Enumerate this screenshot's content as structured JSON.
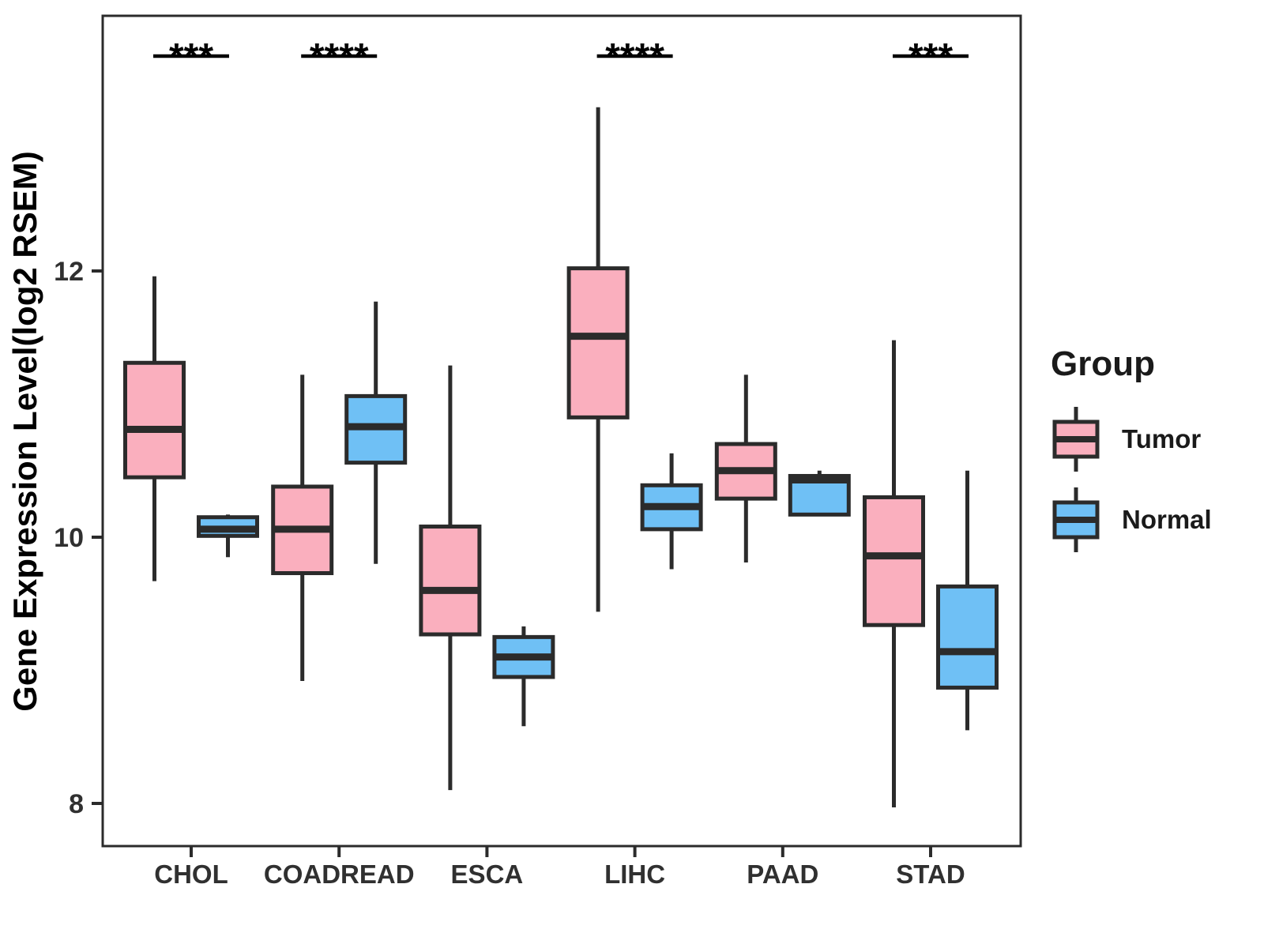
{
  "chart_data": {
    "type": "boxplot",
    "title": "",
    "ylabel": "Gene Expression Level(log2 RSEM)",
    "xlabel": "",
    "categories": [
      "CHOL",
      "COADREAD",
      "ESCA",
      "LIHC",
      "PAAD",
      "STAD"
    ],
    "y_ticks": [
      "8",
      "10",
      "12"
    ],
    "y_tick_values": [
      8,
      10,
      12
    ],
    "ylim": [
      7.68,
      13.92
    ],
    "grid": false,
    "legend": {
      "title": "Group",
      "position": "right",
      "entries": [
        {
          "label": "Tumor",
          "color": "#FAAFBE"
        },
        {
          "label": "Normal",
          "color": "#6FC0F5"
        }
      ]
    },
    "significance": [
      {
        "category": "CHOL",
        "label": "***"
      },
      {
        "category": "COADREAD",
        "label": "****"
      },
      {
        "category": "LIHC",
        "label": "****"
      },
      {
        "category": "STAD",
        "label": "***"
      }
    ],
    "series": [
      {
        "name": "Tumor",
        "color": "#FAAFBE",
        "boxes": [
          {
            "category": "CHOL",
            "whisker_low": 9.67,
            "q1": 10.45,
            "median": 10.81,
            "q3": 11.31,
            "whisker_high": 11.96
          },
          {
            "category": "COADREAD",
            "whisker_low": 8.92,
            "q1": 9.73,
            "median": 10.06,
            "q3": 10.38,
            "whisker_high": 11.22
          },
          {
            "category": "ESCA",
            "whisker_low": 8.1,
            "q1": 9.27,
            "median": 9.6,
            "q3": 10.08,
            "whisker_high": 11.29
          },
          {
            "category": "LIHC",
            "whisker_low": 9.44,
            "q1": 10.9,
            "median": 11.51,
            "q3": 12.02,
            "whisker_high": 13.23
          },
          {
            "category": "PAAD",
            "whisker_low": 9.81,
            "q1": 10.29,
            "median": 10.5,
            "q3": 10.7,
            "whisker_high": 11.22
          },
          {
            "category": "STAD",
            "whisker_low": 7.97,
            "q1": 9.34,
            "median": 9.86,
            "q3": 10.3,
            "whisker_high": 11.48
          }
        ]
      },
      {
        "name": "Normal",
        "color": "#6FC0F5",
        "boxes": [
          {
            "category": "CHOL",
            "whisker_low": 9.85,
            "q1": 10.01,
            "median": 10.06,
            "q3": 10.15,
            "whisker_high": 10.17
          },
          {
            "category": "COADREAD",
            "whisker_low": 9.8,
            "q1": 10.56,
            "median": 10.83,
            "q3": 11.06,
            "whisker_high": 11.77
          },
          {
            "category": "ESCA",
            "whisker_low": 8.58,
            "q1": 8.95,
            "median": 9.1,
            "q3": 9.25,
            "whisker_high": 9.33
          },
          {
            "category": "LIHC",
            "whisker_low": 9.76,
            "q1": 10.06,
            "median": 10.23,
            "q3": 10.39,
            "whisker_high": 10.63
          },
          {
            "category": "PAAD",
            "whisker_low": 10.17,
            "q1": 10.17,
            "median": 10.43,
            "q3": 10.46,
            "whisker_high": 10.5
          },
          {
            "category": "STAD",
            "whisker_low": 8.55,
            "q1": 8.87,
            "median": 9.14,
            "q3": 9.63,
            "whisker_high": 10.5
          }
        ]
      }
    ],
    "style_colors": {
      "stroke": "#2B2B2B",
      "axis_text": "#303030",
      "background": "#FFFFFF"
    }
  }
}
